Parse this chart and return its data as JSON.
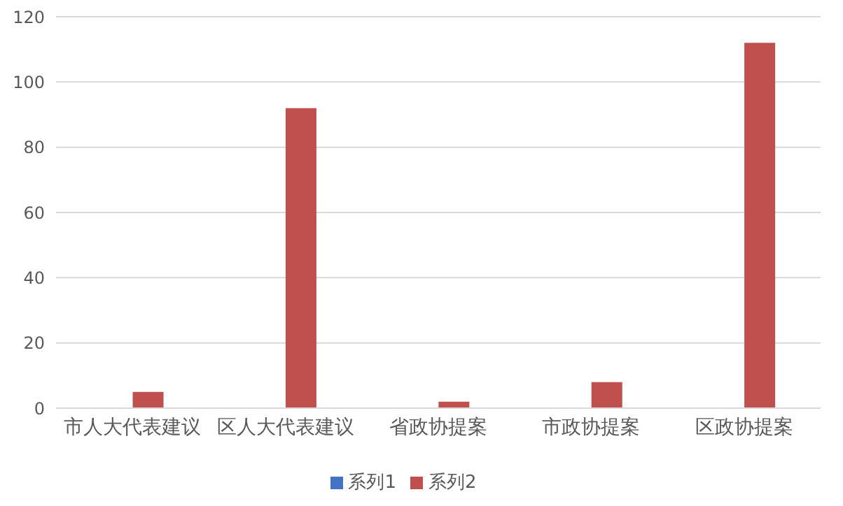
{
  "chart_data": {
    "type": "bar",
    "categories": [
      "市人大代表建议",
      "区人大代表建议",
      "省政协提案",
      "市政协提案",
      "区政协提案"
    ],
    "series": [
      {
        "name": "系列1",
        "color": "#4472c4",
        "values": [
          0,
          0,
          0,
          0,
          0
        ]
      },
      {
        "name": "系列2",
        "color": "#c0504d",
        "values": [
          5,
          92,
          2,
          8,
          112
        ]
      }
    ],
    "ylim": [
      0,
      120
    ],
    "yticks": [
      0,
      20,
      40,
      60,
      80,
      100,
      120
    ],
    "grid": "y",
    "legend": "bottom"
  }
}
